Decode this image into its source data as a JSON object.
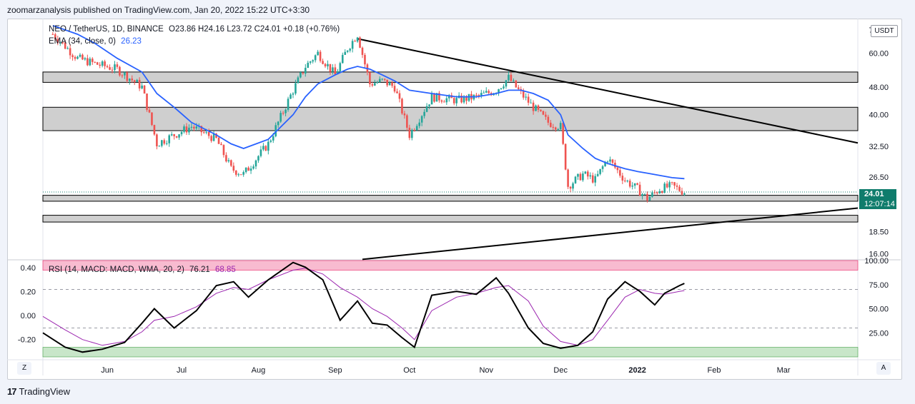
{
  "header": {
    "published": "zoomarzanalysis published on TradingView.com, Jan 20, 2022 15:22 UTC+3:30"
  },
  "legend": {
    "main_symbol": "NEO / TetherUS, 1D, BINANCE",
    "ohlc": "O23.86  H24.16  L23.72  C24.01  +0.18 (+0.76%)",
    "ema_label": "EMA (34, close, 0)",
    "ema_value": "26.23",
    "rsi_label": "RSI (14, MACD: MACD, WMA, 20, 2)",
    "rsi_value": "76.21",
    "rsi_ma_value": "68.85"
  },
  "price_axis": {
    "currency_badge": "USDT",
    "ticks": [
      "70.00",
      "60.00",
      "48.00",
      "40.00",
      "32.50",
      "26.50",
      "18.50",
      "16.00"
    ],
    "last_price": "24.01",
    "countdown": "12:07:14"
  },
  "rsi_axis": {
    "left_ticks": [
      "0.40",
      "0.20",
      "0.00",
      "-0.20"
    ],
    "right_ticks": [
      "100.00",
      "75.00",
      "50.00",
      "25.00"
    ]
  },
  "time_axis": {
    "labels": [
      "Jun",
      "Jul",
      "Aug",
      "Sep",
      "Oct",
      "Nov",
      "Dec",
      "2022",
      "Feb",
      "Mar"
    ]
  },
  "controls": {
    "zoom_button": "Z",
    "auto_button": "A"
  },
  "footer": {
    "brand": "TradingView"
  },
  "colors": {
    "up": "#26a69a",
    "down": "#ef5350",
    "ema": "#2962ff",
    "rsi": "#000000",
    "rsi_ma": "#9c27b0",
    "zone": "#cfcfcf",
    "overbought": "#f8bbd0",
    "oversold": "#c8e6c9",
    "last_price": "#0f7c6c"
  },
  "chart_data": [
    {
      "type": "candlestick",
      "title": "NEO / TetherUS, 1D, BINANCE",
      "y_scale": "log",
      "ylim": [
        15.5,
        74
      ],
      "x_range": [
        "2021-05-06",
        "2022-03-31"
      ],
      "x": [
        "2021-05-10",
        "2021-05-20",
        "2021-05-27",
        "2021-06-05",
        "2021-06-15",
        "2021-06-21",
        "2021-06-28",
        "2021-07-05",
        "2021-07-15",
        "2021-07-21",
        "2021-07-26",
        "2021-08-05",
        "2021-08-15",
        "2021-08-20",
        "2021-08-25",
        "2021-09-01",
        "2021-09-06",
        "2021-09-10",
        "2021-09-15",
        "2021-09-20",
        "2021-09-25",
        "2021-10-01",
        "2021-10-10",
        "2021-10-20",
        "2021-10-28",
        "2021-11-05",
        "2021-11-10",
        "2021-11-15",
        "2021-11-20",
        "2021-11-26",
        "2021-12-01",
        "2021-12-04",
        "2021-12-10",
        "2021-12-15",
        "2021-12-20",
        "2021-12-27",
        "2022-01-01",
        "2022-01-05",
        "2022-01-10",
        "2022-01-15",
        "2022-01-20"
      ],
      "series": [
        {
          "name": "NEO / TetherUS",
          "values": [
            68,
            58,
            56,
            54,
            48,
            33,
            35,
            37,
            34,
            28,
            27,
            33,
            47,
            55,
            60,
            52,
            62,
            68,
            49,
            50,
            48,
            35,
            45,
            44,
            45,
            47,
            51,
            46,
            42,
            38,
            37,
            25,
            27,
            26,
            30,
            26,
            24.5,
            23,
            24.5,
            25,
            24.01
          ]
        },
        {
          "name": "EMA (34, close, 0)",
          "values": [
            72,
            68,
            64,
            58,
            53,
            46,
            42,
            38,
            35,
            33,
            32,
            34,
            40,
            45,
            49,
            52,
            54,
            55,
            54,
            52,
            50,
            47,
            46,
            45,
            45,
            46,
            47,
            47,
            46,
            44,
            40,
            35,
            32,
            30,
            29,
            28,
            27.5,
            27.2,
            26.8,
            26.4,
            26.23
          ]
        }
      ],
      "trendlines": [
        {
          "label": "descending resistance",
          "from": [
            "2021-09-10",
            66
          ],
          "to": [
            "2022-03-31",
            33.2
          ]
        },
        {
          "label": "ascending support",
          "from": [
            "2021-09-12",
            15.4
          ],
          "to": [
            "2022-03-31",
            21.6
          ]
        }
      ],
      "zones": [
        {
          "low": 49.5,
          "high": 53
        },
        {
          "low": 36,
          "high": 42
        },
        {
          "low": 22.6,
          "high": 23.5
        },
        {
          "low": 19.7,
          "high": 20.6
        }
      ],
      "last_price": 24.01
    },
    {
      "type": "line",
      "title": "RSI (14, MACD: MACD, WMA, 20, 2)",
      "ylim": [
        0,
        100
      ],
      "x_range": [
        "2021-05-06",
        "2022-03-31"
      ],
      "bands": [
        {
          "low": 90,
          "high": 100
        },
        {
          "low": 0,
          "high": 10
        }
      ],
      "reference_lines": [
        70,
        30
      ],
      "x": [
        "2021-05-06",
        "2021-05-15",
        "2021-05-22",
        "2021-05-30",
        "2021-06-08",
        "2021-06-15",
        "2021-06-20",
        "2021-06-28",
        "2021-07-07",
        "2021-07-15",
        "2021-07-22",
        "2021-07-28",
        "2021-08-05",
        "2021-08-15",
        "2021-08-20",
        "2021-08-27",
        "2021-09-03",
        "2021-09-10",
        "2021-09-16",
        "2021-09-22",
        "2021-09-28",
        "2021-10-03",
        "2021-10-10",
        "2021-10-20",
        "2021-10-28",
        "2021-11-05",
        "2021-11-10",
        "2021-11-18",
        "2021-11-24",
        "2021-12-01",
        "2021-12-08",
        "2021-12-14",
        "2021-12-20",
        "2021-12-27",
        "2022-01-02",
        "2022-01-08",
        "2022-01-12",
        "2022-01-18",
        "2022-01-20"
      ],
      "series": [
        {
          "name": "RSI",
          "values": [
            25,
            10,
            5,
            8,
            15,
            35,
            50,
            30,
            48,
            74,
            78,
            62,
            80,
            98,
            93,
            80,
            38,
            58,
            35,
            33,
            20,
            10,
            64,
            68,
            65,
            82,
            66,
            30,
            14,
            9,
            12,
            26,
            60,
            78,
            68,
            54,
            66,
            74,
            76.21
          ]
        },
        {
          "name": "RSI MA",
          "values": [
            42,
            28,
            18,
            12,
            16,
            26,
            38,
            42,
            52,
            66,
            72,
            70,
            80,
            90,
            92,
            86,
            72,
            62,
            50,
            42,
            30,
            18,
            48,
            62,
            66,
            72,
            74,
            58,
            32,
            16,
            12,
            18,
            38,
            62,
            70,
            66,
            65,
            68,
            68.85
          ]
        }
      ]
    }
  ]
}
